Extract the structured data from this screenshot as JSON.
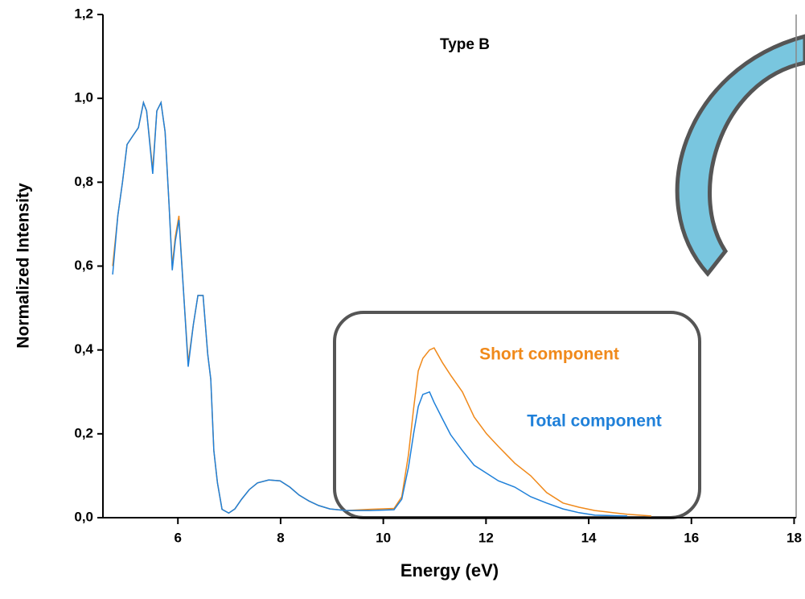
{
  "chart_data": {
    "type": "line",
    "title": "Type B",
    "x_label": "Energy (eV)",
    "y_label": "Normalized Intensity",
    "x": [
      4.73,
      4.83,
      4.92,
      5.01,
      5.12,
      5.23,
      5.33,
      5.39,
      5.51,
      5.59,
      5.67,
      5.75,
      5.83,
      5.89,
      5.95,
      6.02,
      6.11,
      6.2,
      6.3,
      6.39,
      6.49,
      6.58,
      6.64,
      6.7,
      6.77,
      6.86,
      6.99,
      7.11,
      7.24,
      7.39,
      7.55,
      7.77,
      7.99,
      8.18,
      8.36,
      8.55,
      8.74,
      8.96,
      9.27,
      9.74,
      10.21,
      10.36,
      10.49,
      10.59,
      10.68,
      10.77,
      10.9,
      10.99,
      11.15,
      11.31,
      11.54,
      11.77,
      12.01,
      12.24,
      12.56,
      12.87,
      13.18,
      13.5,
      13.81,
      14.12,
      14.75,
      15.22
    ],
    "series": [
      {
        "name": "Short component",
        "color": "#f0891a",
        "values": [
          0.6,
          0.72,
          0.8,
          0.89,
          0.91,
          0.93,
          0.99,
          0.97,
          0.83,
          0.97,
          0.99,
          0.92,
          0.74,
          0.6,
          0.67,
          0.72,
          0.54,
          0.37,
          0.46,
          0.53,
          0.53,
          0.39,
          0.33,
          0.16,
          0.083,
          0.02,
          0.011,
          0.021,
          0.044,
          0.067,
          0.083,
          0.09,
          0.088,
          0.073,
          0.054,
          0.04,
          0.029,
          0.021,
          0.017,
          0.02,
          0.022,
          0.05,
          0.15,
          0.26,
          0.35,
          0.38,
          0.4,
          0.405,
          0.37,
          0.34,
          0.3,
          0.24,
          0.2,
          0.17,
          0.13,
          0.1,
          0.06,
          0.035,
          0.025,
          0.017,
          0.008,
          0.004
        ]
      },
      {
        "name": "Total component",
        "color": "#1f80d9",
        "values": [
          0.58,
          0.72,
          0.8,
          0.89,
          0.91,
          0.93,
          0.99,
          0.97,
          0.82,
          0.97,
          0.99,
          0.92,
          0.74,
          0.59,
          0.66,
          0.71,
          0.54,
          0.36,
          0.46,
          0.53,
          0.53,
          0.39,
          0.33,
          0.16,
          0.083,
          0.02,
          0.011,
          0.021,
          0.044,
          0.067,
          0.083,
          0.09,
          0.088,
          0.073,
          0.054,
          0.04,
          0.029,
          0.021,
          0.017,
          0.017,
          0.019,
          0.044,
          0.12,
          0.2,
          0.265,
          0.294,
          0.3,
          0.275,
          0.236,
          0.198,
          0.16,
          0.125,
          0.106,
          0.088,
          0.073,
          0.05,
          0.035,
          0.021,
          0.012,
          0.006,
          0.004,
          null
        ]
      }
    ],
    "xlim": [
      4.54,
      18.04
    ],
    "ylim": [
      0,
      1.2
    ],
    "xticks": [
      6,
      8,
      10,
      12,
      14,
      16,
      18
    ],
    "yticks": [
      {
        "value": 0,
        "label": "0,0"
      },
      {
        "value": 0.2,
        "label": "0,2"
      },
      {
        "value": 0.4,
        "label": "0,4"
      },
      {
        "value": 0.6,
        "label": "0,6"
      },
      {
        "value": 0.8,
        "label": "0,8"
      },
      {
        "value": 1.0,
        "label": "1,0"
      },
      {
        "value": 1.2,
        "label": "1,2"
      }
    ]
  }
}
